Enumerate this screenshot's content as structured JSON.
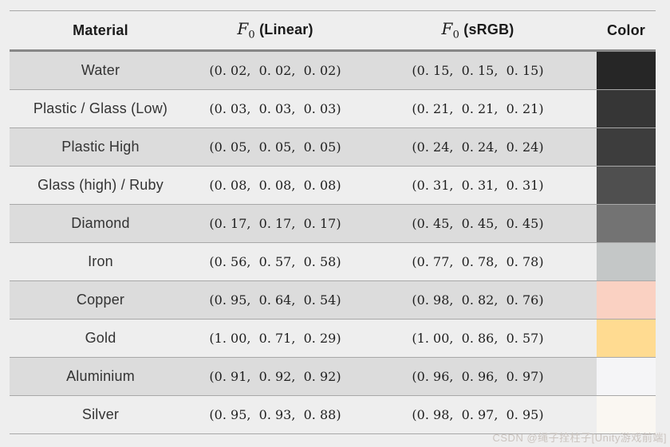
{
  "page": {
    "background": "#eeeeee",
    "stripe_color": "#dcdcdc",
    "border_thin": "#a8a8a8",
    "border_thick": "#878787",
    "watermark": "CSDN @绳子拴柱子[Unity游戏前端]"
  },
  "table": {
    "headers": {
      "material": "Material",
      "f0_symbol": "F",
      "f0_sub": "0",
      "linear_rest": " (Linear)",
      "srgb_rest": " (sRGB)",
      "color": "Color"
    },
    "rows": [
      {
        "material": "Water",
        "linear": "(0. 02,  0. 02,  0. 02)",
        "srgb": "(0. 15,  0. 15,  0. 15)",
        "swatch": "#262626"
      },
      {
        "material": "Plastic / Glass (Low)",
        "linear": "(0. 03,  0. 03,  0. 03)",
        "srgb": "(0. 21,  0. 21,  0. 21)",
        "swatch": "#363636"
      },
      {
        "material": "Plastic High",
        "linear": "(0. 05,  0. 05,  0. 05)",
        "srgb": "(0. 24,  0. 24,  0. 24)",
        "swatch": "#3d3d3d"
      },
      {
        "material": "Glass (high) / Ruby",
        "linear": "(0. 08,  0. 08,  0. 08)",
        "srgb": "(0. 31,  0. 31,  0. 31)",
        "swatch": "#4f4f4f"
      },
      {
        "material": "Diamond",
        "linear": "(0. 17,  0. 17,  0. 17)",
        "srgb": "(0. 45,  0. 45,  0. 45)",
        "swatch": "#737373"
      },
      {
        "material": "Iron",
        "linear": "(0. 56,  0. 57,  0. 58)",
        "srgb": "(0. 77,  0. 78,  0. 78)",
        "swatch": "#c4c7c7"
      },
      {
        "material": "Copper",
        "linear": "(0. 95,  0. 64,  0. 54)",
        "srgb": "(0. 98,  0. 82,  0. 76)",
        "swatch": "#fad1c2"
      },
      {
        "material": "Gold",
        "linear": "(1. 00,  0. 71,  0. 29)",
        "srgb": "(1. 00,  0. 86,  0. 57)",
        "swatch": "#ffdb91"
      },
      {
        "material": "Aluminium",
        "linear": "(0. 91,  0. 92,  0. 92)",
        "srgb": "(0. 96,  0. 96,  0. 97)",
        "swatch": "#f5f5f7"
      },
      {
        "material": "Silver",
        "linear": "(0. 95,  0. 93,  0. 88)",
        "srgb": "(0. 98,  0. 97,  0. 95)",
        "swatch": "#faf7f2"
      }
    ]
  }
}
